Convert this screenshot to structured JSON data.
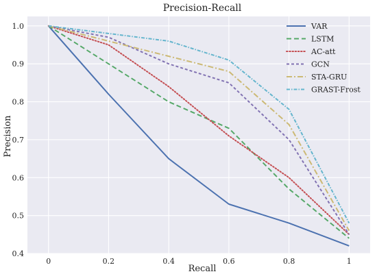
{
  "chart_data": {
    "type": "line",
    "title": "Precision-Recall",
    "xlabel": "Recall",
    "ylabel": "Precision",
    "xlim": [
      -0.07,
      1.07
    ],
    "ylim": [
      0.4,
      1.025
    ],
    "x_ticks": [
      0,
      0.2,
      0.4,
      0.6,
      0.8,
      1
    ],
    "x_tick_labels": [
      "0",
      "0.2",
      "0.4",
      "0.6",
      "0.8",
      "1"
    ],
    "y_ticks": [
      0.4,
      0.5,
      0.6,
      0.7,
      0.8,
      0.9,
      1.0
    ],
    "y_tick_labels": [
      "0.4",
      "0.5",
      "0.6",
      "0.7",
      "0.8",
      "0.9",
      "1.0"
    ],
    "x": [
      0,
      0.2,
      0.4,
      0.6,
      0.8,
      1
    ],
    "grid": true,
    "plot_background": "#eaeaf2",
    "grid_color": "#ffffff",
    "legend_position": "top-right",
    "series": [
      {
        "name": "VAR",
        "values": [
          1.0,
          0.82,
          0.65,
          0.53,
          0.48,
          0.42
        ],
        "color": "#4c72b0",
        "style": "solid"
      },
      {
        "name": "LSTM",
        "values": [
          1.0,
          0.9,
          0.8,
          0.73,
          0.57,
          0.44
        ],
        "color": "#55a868",
        "style": "dashed"
      },
      {
        "name": "AC-att",
        "values": [
          1.0,
          0.95,
          0.84,
          0.71,
          0.6,
          0.45
        ],
        "color": "#c44e52",
        "style": "dotted"
      },
      {
        "name": "GCN",
        "values": [
          1.0,
          0.97,
          0.9,
          0.85,
          0.7,
          0.45
        ],
        "color": "#8172b2",
        "style": "dashed-short"
      },
      {
        "name": "STA-GRU",
        "values": [
          1.0,
          0.96,
          0.92,
          0.88,
          0.74,
          0.46
        ],
        "color": "#ccb974",
        "style": "dashdot"
      },
      {
        "name": "GRAST-Frost",
        "values": [
          1.0,
          0.98,
          0.96,
          0.91,
          0.78,
          0.48
        ],
        "color": "#64b5cd",
        "style": "dashdot-dense"
      }
    ]
  }
}
